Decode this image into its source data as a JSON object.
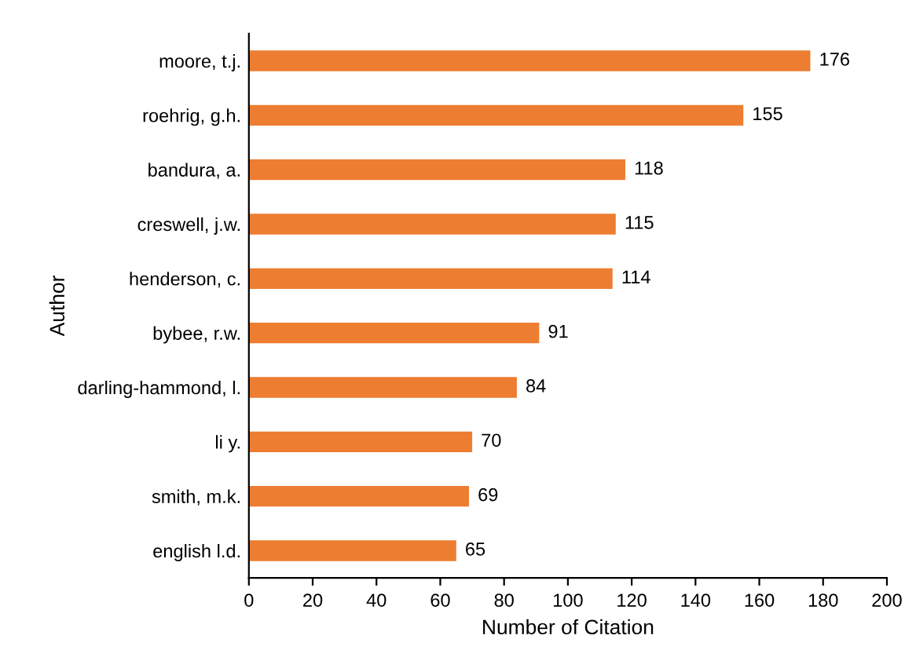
{
  "chart_data": {
    "type": "bar",
    "orientation": "horizontal",
    "xlabel": "Number of Citation",
    "ylabel": "Author",
    "categories": [
      "moore, t.j.",
      "roehrig, g.h.",
      "bandura, a.",
      "creswell, j.w.",
      "henderson, c.",
      "bybee, r.w.",
      "darling-hammond, l.",
      "li y.",
      "smith, m.k.",
      "english l.d."
    ],
    "values": [
      176,
      155,
      118,
      115,
      114,
      91,
      84,
      70,
      69,
      65
    ],
    "color": "#ed7d31",
    "xlim": [
      0,
      200
    ],
    "xticks": [
      0,
      20,
      40,
      60,
      80,
      100,
      120,
      140,
      160,
      180,
      200
    ],
    "data_labels": true,
    "grid": false,
    "legend": false
  }
}
